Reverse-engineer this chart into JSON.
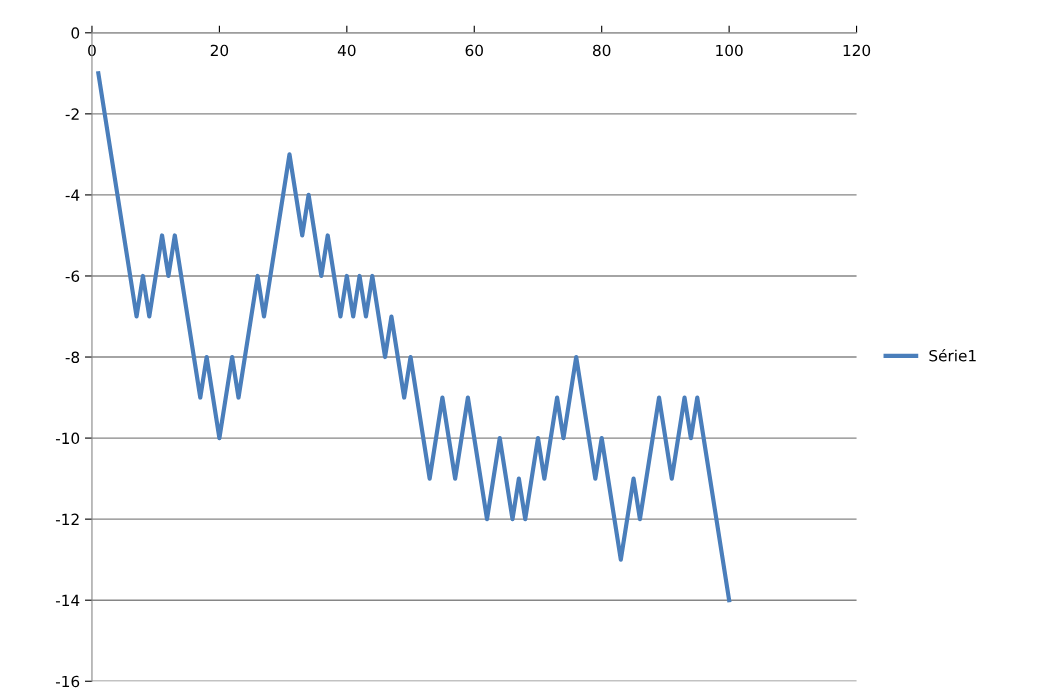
{
  "chart_data": {
    "type": "line",
    "x": [
      1,
      7,
      8,
      9,
      11,
      12,
      13,
      17,
      18,
      20,
      22,
      23,
      26,
      27,
      31,
      33,
      34,
      36,
      37,
      39,
      40,
      41,
      42,
      43,
      44,
      46,
      47,
      49,
      50,
      53,
      55,
      57,
      59,
      62,
      64,
      66,
      67,
      68,
      70,
      71,
      73,
      74,
      76,
      79,
      80,
      83,
      85,
      86,
      89,
      91,
      93,
      94,
      95,
      100
    ],
    "series": [
      {
        "name": "Série1",
        "color": "#4a7ebb",
        "values": [
          -1,
          -7,
          -6,
          -7,
          -5,
          -6,
          -5,
          -9,
          -8,
          -10,
          -8,
          -9,
          -6,
          -7,
          -3,
          -5,
          -4,
          -6,
          -5,
          -7,
          -6,
          -7,
          -6,
          -7,
          -6,
          -8,
          -7,
          -9,
          -8,
          -11,
          -9,
          -11,
          -9,
          -12,
          -10,
          -12,
          -11,
          -12,
          -10,
          -11,
          -9,
          -10,
          -8,
          -11,
          -10,
          -13,
          -11,
          -12,
          -9,
          -11,
          -9,
          -10,
          -9,
          -14
        ]
      }
    ],
    "xlim": [
      0,
      120
    ],
    "xticks": [
      0,
      20,
      40,
      60,
      80,
      100,
      120
    ],
    "ylim": [
      -16,
      0
    ],
    "yticks": [
      -16,
      -14,
      -12,
      -10,
      -8,
      -6,
      -4,
      -2,
      0
    ],
    "grid": "y",
    "legend": "right",
    "marker": "none",
    "line_style": "solid"
  }
}
